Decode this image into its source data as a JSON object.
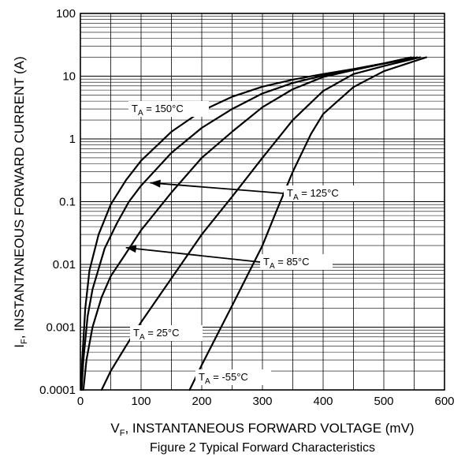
{
  "chart_data": {
    "type": "line",
    "caption": "Figure 2 Typical Forward Characteristics",
    "xlabel": {
      "main": "V",
      "sub": "F",
      "rest": ", INSTANTANEOUS FORWARD VOLTAGE (mV)"
    },
    "ylabel": {
      "main": "I",
      "sub": "F",
      "rest": ", INSTANTANEOUS FORWARD CURRENT (A)"
    },
    "x_scale": "linear",
    "y_scale": "log",
    "xlim": [
      0,
      600
    ],
    "ylim": [
      0.0001,
      100
    ],
    "x_ticks": [
      "0",
      "100",
      "200",
      "300",
      "400",
      "500",
      "600"
    ],
    "y_ticks": [
      "0.0001",
      "0.001",
      "0.01",
      "0.1",
      "1",
      "10",
      "100"
    ],
    "grid": true,
    "series": [
      {
        "name": "T_A = 150°C",
        "x": [
          1,
          3,
          8,
          15,
          30,
          50,
          75,
          100,
          150,
          200,
          250,
          300,
          350,
          400,
          450,
          500,
          545
        ],
        "y": [
          0.0001,
          0.0003,
          0.002,
          0.008,
          0.03,
          0.09,
          0.22,
          0.45,
          1.3,
          2.8,
          4.7,
          6.8,
          8.8,
          10.8,
          13,
          16,
          20
        ]
      },
      {
        "name": "T_A = 125°C",
        "x": [
          2,
          5,
          12,
          20,
          40,
          60,
          80,
          100,
          150,
          200,
          250,
          300,
          350,
          400,
          450,
          500,
          550
        ],
        "y": [
          0.0001,
          0.0003,
          0.0015,
          0.004,
          0.018,
          0.045,
          0.1,
          0.18,
          0.6,
          1.5,
          3.0,
          5.3,
          7.8,
          10.2,
          12.8,
          16,
          20
        ]
      },
      {
        "name": "T_A = 85°C",
        "x": [
          5,
          10,
          20,
          35,
          50,
          75,
          100,
          150,
          200,
          250,
          300,
          350,
          400,
          450,
          500,
          555
        ],
        "y": [
          0.0001,
          0.0003,
          0.001,
          0.003,
          0.0065,
          0.015,
          0.035,
          0.14,
          0.5,
          1.3,
          3.2,
          6.2,
          9.7,
          12.5,
          15.8,
          20
        ]
      },
      {
        "name": "T_A = 25°C",
        "x": [
          35,
          50,
          75,
          100,
          150,
          200,
          250,
          300,
          350,
          400,
          450,
          500,
          560
        ],
        "y": [
          0.0001,
          0.0002,
          0.0005,
          0.0012,
          0.006,
          0.03,
          0.12,
          0.5,
          2.0,
          5.8,
          10.8,
          14.5,
          20
        ]
      },
      {
        "name": "T_A = -55°C",
        "x": [
          180,
          200,
          250,
          300,
          320,
          350,
          380,
          400,
          450,
          500,
          570
        ],
        "y": [
          0.0001,
          0.00025,
          0.0022,
          0.02,
          0.06,
          0.3,
          1.2,
          2.5,
          6.7,
          12,
          20
        ]
      }
    ],
    "annotations": [
      {
        "text": {
          "main": "T",
          "sub": "A",
          "rest": " = 150°C"
        },
        "target": null
      },
      {
        "text": {
          "main": "T",
          "sub": "A",
          "rest": " = 125°C"
        },
        "arrow_to": [
          115,
          0.2
        ]
      },
      {
        "text": {
          "main": "T",
          "sub": "A",
          "rest": " = 85°C"
        },
        "arrow_to": [
          75,
          0.0185
        ]
      },
      {
        "text": {
          "main": "T",
          "sub": "A",
          "rest": " = 25°C"
        },
        "target": null
      },
      {
        "text": {
          "main": "T",
          "sub": "A",
          "rest": " = -55°C"
        },
        "target": null
      }
    ],
    "line_color": "#000000"
  }
}
